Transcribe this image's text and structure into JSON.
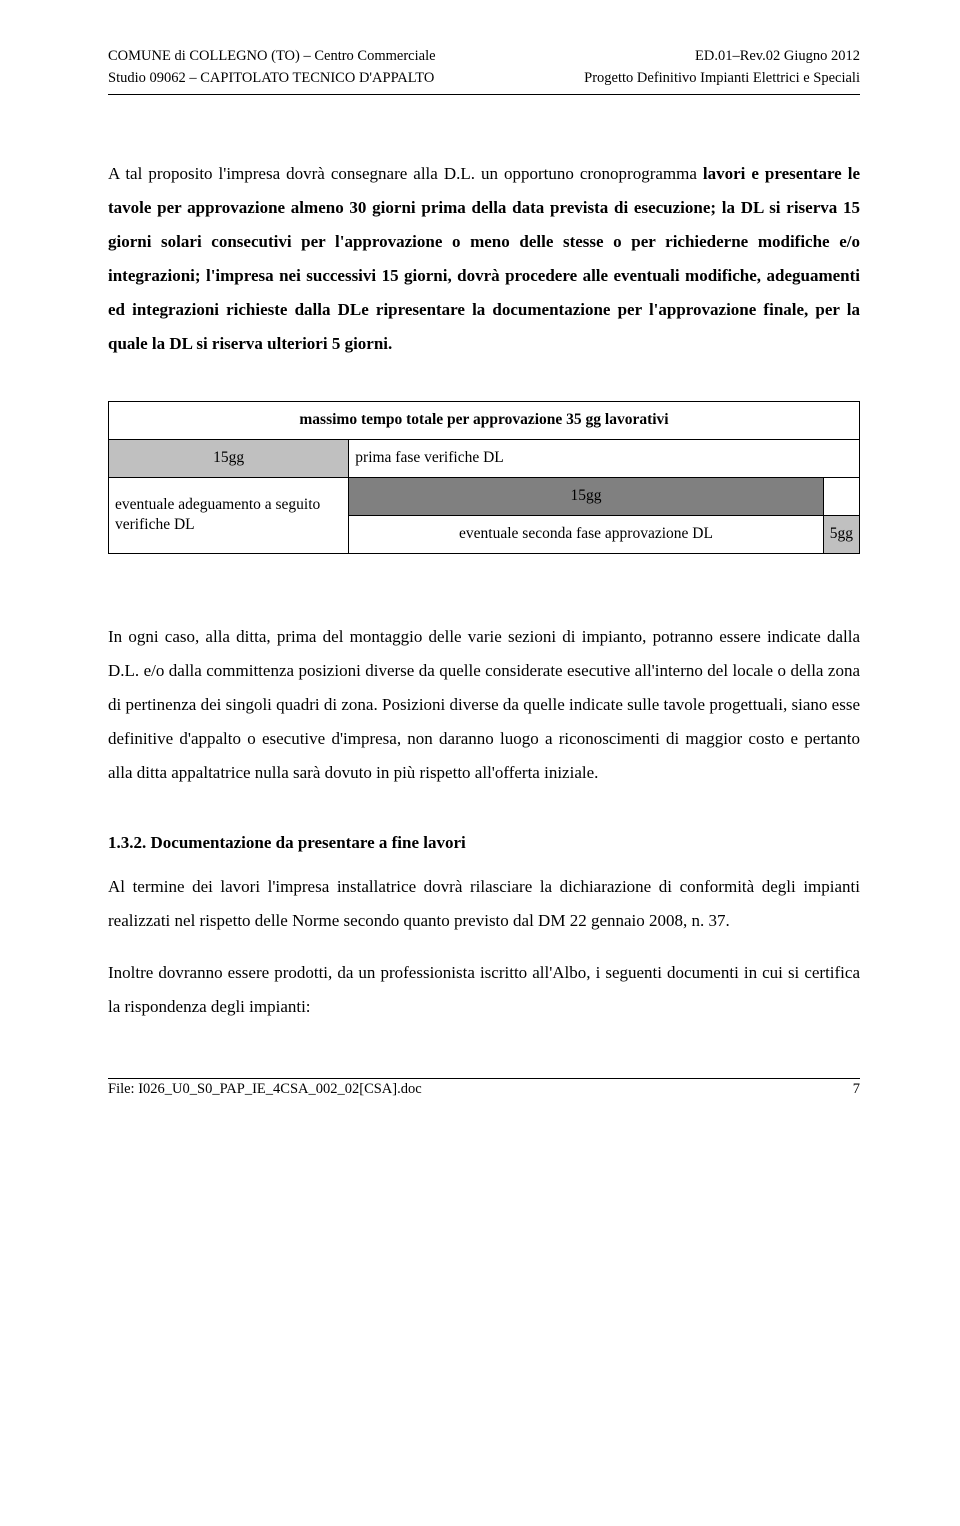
{
  "header": {
    "left1": "COMUNE di COLLEGNO (TO) – Centro Commerciale",
    "left2": "Studio 09062 – CAPITOLATO TECNICO D'APPALTO",
    "right1": "ED.01–Rev.02 Giugno 2012",
    "right2": "Progetto Definitivo Impianti Elettrici e Speciali"
  },
  "para1_lead": "A tal proposito l'impresa dovrà consegnare alla D.L. un opportuno cronoprogramma ",
  "para1_bold": "lavori e presentare le tavole per approvazione almeno 30 giorni prima della data prevista di esecuzione; la DL si riserva 15 giorni solari consecutivi per l'approvazione o meno delle stesse o per richiederne modifiche e/o integrazioni; l'impresa nei successivi 15 giorni, dovrà procedere alle eventuali modifiche, adeguamenti ed integrazioni richieste dalla DLe ripresentare la documentazione per l'approvazione finale, per la quale la DL si riserva ulteriori 5 giorni.",
  "table": {
    "header": "massimo tempo totale per approvazione 35 gg lavorativi",
    "r1c1": "15gg",
    "r1c2": "prima fase verifiche DL",
    "r2c1": "eventuale adeguamento a seguito verifiche DL",
    "r2c2": "15gg",
    "r3c1": "eventuale seconda fase approvazione DL",
    "r3c2": "5gg"
  },
  "para2": "In ogni caso, alla ditta, prima del montaggio delle varie sezioni di impianto, potranno essere indicate dalla D.L. e/o dalla committenza posizioni diverse da quelle considerate esecutive all'interno del locale o della zona di pertinenza dei singoli quadri di zona. Posizioni diverse da quelle indicate sulle tavole progettuali, siano esse definitive d'appalto o esecutive d'impresa, non daranno luogo a riconoscimenti di maggior costo e pertanto alla ditta appaltatrice nulla sarà dovuto in più rispetto all'offerta iniziale.",
  "section_heading": "1.3.2.  Documentazione da presentare a fine lavori",
  "para3": "Al termine dei lavori l'impresa installatrice dovrà rilasciare la dichiarazione di conformità degli impianti realizzati nel rispetto delle Norme secondo quanto previsto dal DM 22 gennaio 2008, n. 37.",
  "para4": "Inoltre dovranno essere prodotti, da un professionista iscritto all'Albo, i seguenti documenti in cui si certifica la rispondenza degli impianti:",
  "footer": {
    "file": "File: I026_U0_S0_PAP_IE_4CSA_002_02[CSA].doc",
    "page": "7"
  },
  "colors": {
    "bg": "#ffffff",
    "text": "#000000",
    "gray_light": "#c0c0c0",
    "gray_dark": "#808080",
    "border": "#000000"
  }
}
